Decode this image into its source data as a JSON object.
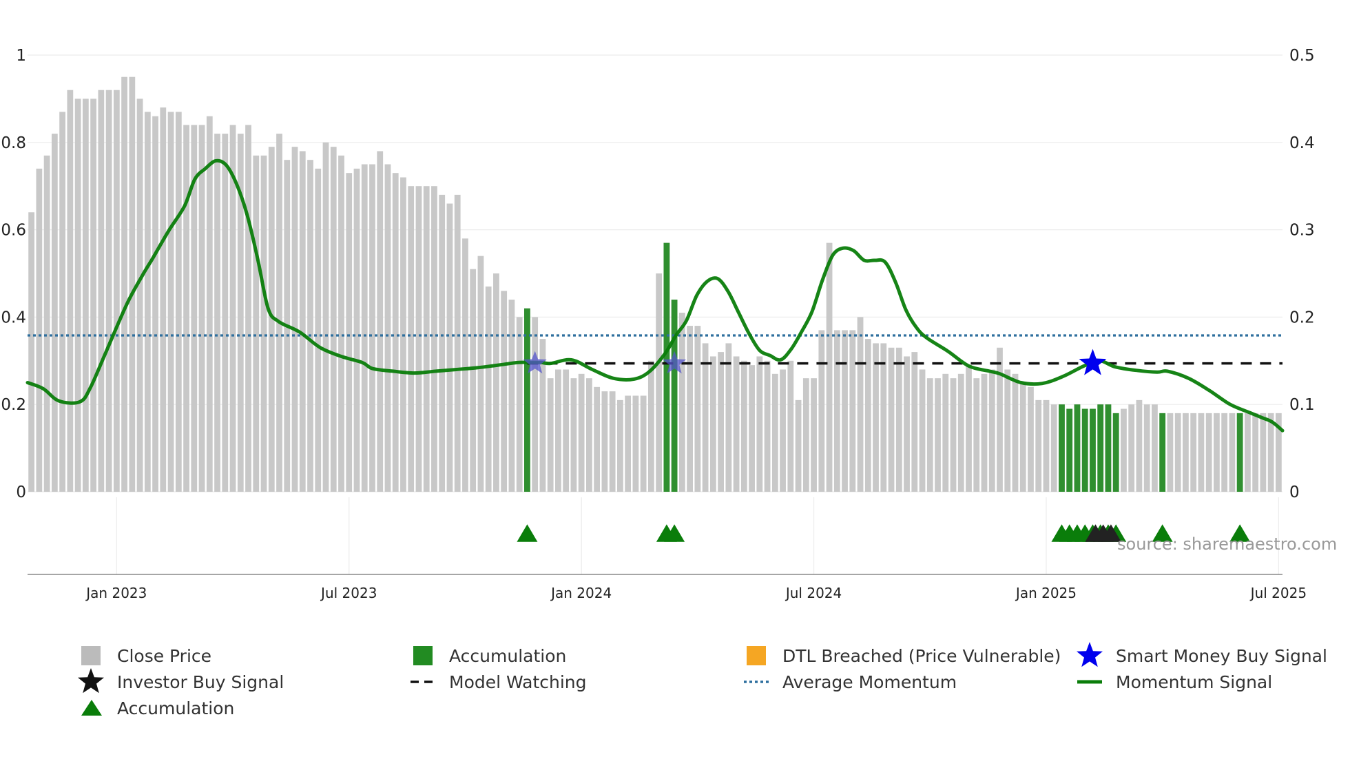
{
  "chart_data": {
    "type": "bar",
    "title": "",
    "source_text": "source: sharemaestro.com",
    "x_ticks": [
      "Jan 2023",
      "Jul 2023",
      "Jan 2024",
      "Jul 2024",
      "Jan 2025",
      "Jul 2025"
    ],
    "y_left": {
      "range": [
        0,
        1
      ],
      "ticks": [
        "0",
        "0.2",
        "0.4",
        "0.6",
        "0.8",
        "1"
      ]
    },
    "y_right": {
      "range": [
        0,
        0.5
      ],
      "ticks": [
        "0",
        "0.1",
        "0.2",
        "0.3",
        "0.4",
        "0.5"
      ]
    },
    "close_price": [
      0.64,
      0.74,
      0.77,
      0.82,
      0.87,
      0.92,
      0.9,
      0.9,
      0.9,
      0.92,
      0.92,
      0.92,
      0.95,
      0.95,
      0.9,
      0.87,
      0.86,
      0.88,
      0.87,
      0.87,
      0.84,
      0.84,
      0.84,
      0.86,
      0.82,
      0.82,
      0.84,
      0.82,
      0.84,
      0.77,
      0.77,
      0.79,
      0.82,
      0.76,
      0.79,
      0.78,
      0.76,
      0.74,
      0.8,
      0.79,
      0.77,
      0.73,
      0.74,
      0.75,
      0.75,
      0.78,
      0.75,
      0.73,
      0.72,
      0.7,
      0.7,
      0.7,
      0.7,
      0.68,
      0.66,
      0.68,
      0.58,
      0.51,
      0.54,
      0.47,
      0.5,
      0.46,
      0.44,
      0.4,
      0.42,
      0.4,
      0.35,
      0.26,
      0.28,
      0.28,
      0.26,
      0.27,
      0.26,
      0.24,
      0.23,
      0.23,
      0.21,
      0.22,
      0.22,
      0.22,
      0.3,
      0.5,
      0.57,
      0.44,
      0.41,
      0.38,
      0.38,
      0.34,
      0.31,
      0.32,
      0.34,
      0.31,
      0.3,
      0.29,
      0.31,
      0.3,
      0.27,
      0.28,
      0.3,
      0.21,
      0.26,
      0.26,
      0.37,
      0.57,
      0.37,
      0.37,
      0.37,
      0.4,
      0.35,
      0.34,
      0.34,
      0.33,
      0.33,
      0.31,
      0.32,
      0.28,
      0.26,
      0.26,
      0.27,
      0.26,
      0.27,
      0.29,
      0.26,
      0.27,
      0.28,
      0.33,
      0.28,
      0.27,
      0.25,
      0.24,
      0.21,
      0.21,
      0.2,
      0.2,
      0.19,
      0.2,
      0.19,
      0.19,
      0.2,
      0.2,
      0.18,
      0.19,
      0.2,
      0.21,
      0.2,
      0.2,
      0.18,
      0.18,
      0.18,
      0.18,
      0.18,
      0.18,
      0.18,
      0.18,
      0.18,
      0.18,
      0.18,
      0.18,
      0.18,
      0.18,
      0.18,
      0.18
    ],
    "accumulation_bars": [
      64,
      82,
      83,
      133,
      134,
      135,
      136,
      137,
      138,
      139,
      140,
      146,
      156
    ],
    "accumulation_markers": [
      64,
      82,
      83,
      133,
      134,
      135,
      136,
      137,
      138,
      139,
      140,
      146,
      156
    ],
    "investor_buy_markers": [
      137,
      138,
      139
    ],
    "smart_money_buy_markers": [
      65,
      83,
      137
    ],
    "model_watching_level": 0.147,
    "average_momentum_level": 0.179,
    "momentum_points": [
      [
        0,
        0.125
      ],
      [
        3,
        0.118
      ],
      [
        6,
        0.104
      ],
      [
        10,
        0.103
      ],
      [
        12,
        0.119
      ],
      [
        15,
        0.16
      ],
      [
        19,
        0.215
      ],
      [
        22,
        0.248
      ],
      [
        24,
        0.268
      ],
      [
        27,
        0.299
      ],
      [
        30,
        0.327
      ],
      [
        32,
        0.358
      ],
      [
        34,
        0.37
      ],
      [
        36,
        0.379
      ],
      [
        38,
        0.374
      ],
      [
        40,
        0.352
      ],
      [
        42,
        0.317
      ],
      [
        44,
        0.267
      ],
      [
        46,
        0.21
      ],
      [
        48,
        0.195
      ],
      [
        52,
        0.183
      ],
      [
        56,
        0.165
      ],
      [
        60,
        0.155
      ],
      [
        64,
        0.148
      ],
      [
        66,
        0.141
      ],
      [
        70,
        0.138
      ],
      [
        74,
        0.136
      ],
      [
        78,
        0.138
      ],
      [
        82,
        0.14
      ],
      [
        86,
        0.142
      ],
      [
        90,
        0.145
      ],
      [
        94,
        0.148
      ],
      [
        98,
        0.148
      ],
      [
        100,
        0.147
      ],
      [
        104,
        0.151
      ],
      [
        108,
        0.14
      ],
      [
        112,
        0.13
      ],
      [
        116,
        0.129
      ],
      [
        119,
        0.138
      ],
      [
        122,
        0.159
      ],
      [
        124,
        0.179
      ],
      [
        126,
        0.196
      ],
      [
        128,
        0.225
      ],
      [
        130,
        0.241
      ],
      [
        132,
        0.244
      ],
      [
        134,
        0.229
      ],
      [
        136,
        0.205
      ],
      [
        138,
        0.181
      ],
      [
        140,
        0.162
      ],
      [
        142,
        0.156
      ],
      [
        144,
        0.151
      ],
      [
        146,
        0.163
      ],
      [
        148,
        0.183
      ],
      [
        150,
        0.206
      ],
      [
        152,
        0.242
      ],
      [
        154,
        0.271
      ],
      [
        156,
        0.279
      ],
      [
        158,
        0.276
      ],
      [
        160,
        0.265
      ],
      [
        162,
        0.265
      ],
      [
        164,
        0.263
      ],
      [
        166,
        0.24
      ],
      [
        168,
        0.208
      ],
      [
        170,
        0.188
      ],
      [
        172,
        0.176
      ],
      [
        176,
        0.161
      ],
      [
        180,
        0.144
      ],
      [
        184,
        0.138
      ],
      [
        186,
        0.135
      ],
      [
        190,
        0.125
      ],
      [
        194,
        0.124
      ],
      [
        198,
        0.132
      ],
      [
        202,
        0.144
      ],
      [
        205,
        0.15
      ],
      [
        208,
        0.143
      ],
      [
        212,
        0.139
      ],
      [
        216,
        0.137
      ],
      [
        218,
        0.138
      ],
      [
        222,
        0.13
      ],
      [
        226,
        0.116
      ],
      [
        230,
        0.1
      ],
      [
        234,
        0.09
      ],
      [
        236,
        0.085
      ],
      [
        238,
        0.08
      ],
      [
        240,
        0.07
      ]
    ],
    "momentum_x_max": 240,
    "legend": [
      {
        "label": "Close Price",
        "kind": "square",
        "color": "#bbbbbb"
      },
      {
        "label": "Accumulation",
        "kind": "square",
        "color": "#228b22"
      },
      {
        "label": "DTL Breached (Price Vulnerable)",
        "kind": "square",
        "color": "#f5a623"
      },
      {
        "label": "Smart Money Buy Signal",
        "kind": "star",
        "color": "#0000ee"
      },
      {
        "label": "Investor Buy Signal",
        "kind": "star",
        "color": "#111111"
      },
      {
        "label": "Model Watching",
        "kind": "dash",
        "color": "#111111"
      },
      {
        "label": "Average Momentum",
        "kind": "dot",
        "color": "#2e6f9e"
      },
      {
        "label": "Momentum Signal",
        "kind": "line",
        "color": "#0a7d0a"
      },
      {
        "label": "Accumulation",
        "kind": "triangle",
        "color": "#0a7d0a"
      }
    ]
  }
}
